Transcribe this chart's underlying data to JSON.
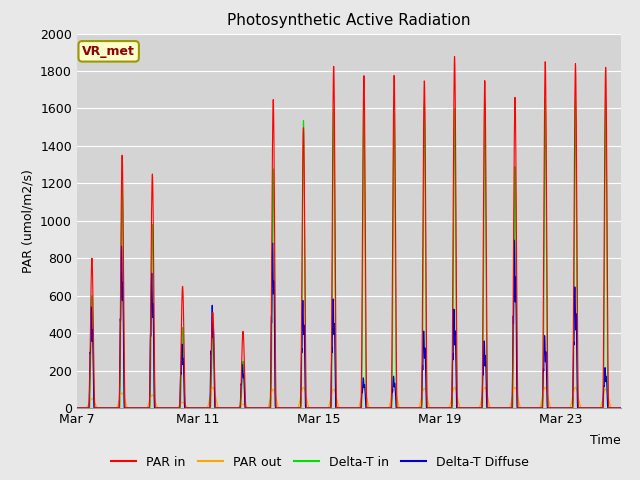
{
  "title": "Photosynthetic Active Radiation",
  "ylabel": "PAR (umol/m2/s)",
  "xlabel": "Time",
  "ylim": [
    0,
    2000
  ],
  "yticks": [
    0,
    200,
    400,
    600,
    800,
    1000,
    1200,
    1400,
    1600,
    1800,
    2000
  ],
  "xtick_labels": [
    "Mar 7",
    "Mar 11",
    "Mar 15",
    "Mar 19",
    "Mar 23"
  ],
  "xtick_positions": [
    0,
    4,
    8,
    12,
    16
  ],
  "n_days": 18,
  "bg_color": "#e8e8e8",
  "plot_bg_color": "#d4d4d4",
  "grid_color": "#ffffff",
  "label_box_text": "VR_met",
  "label_box_bg": "#ffffcc",
  "label_box_edge": "#999900",
  "label_box_text_color": "#8b0000",
  "colors": {
    "PAR in": "#ff0000",
    "PAR out": "#ffa500",
    "Delta-T in": "#00dd00",
    "Delta-T Diffuse": "#0000cc"
  },
  "par_in_peaks": [
    800,
    1350,
    1250,
    650,
    510,
    410,
    1650,
    1500,
    1830,
    1780,
    1780,
    1750,
    1880,
    1750,
    1660,
    1850,
    1840,
    1820
  ],
  "par_out_peaks": [
    50,
    80,
    70,
    30,
    110,
    20,
    100,
    110,
    100,
    100,
    100,
    105,
    110,
    110,
    110,
    110,
    110,
    100
  ],
  "delta_t_in_peaks": [
    600,
    1200,
    980,
    430,
    420,
    250,
    1280,
    1540,
    1600,
    1620,
    1580,
    1630,
    1600,
    1640,
    1290,
    1650,
    1650,
    1640
  ],
  "delta_t_diff_peaks": [
    600,
    960,
    800,
    380,
    610,
    260,
    980,
    640,
    650,
    180,
    190,
    460,
    590,
    400,
    1000,
    430,
    720,
    240
  ]
}
